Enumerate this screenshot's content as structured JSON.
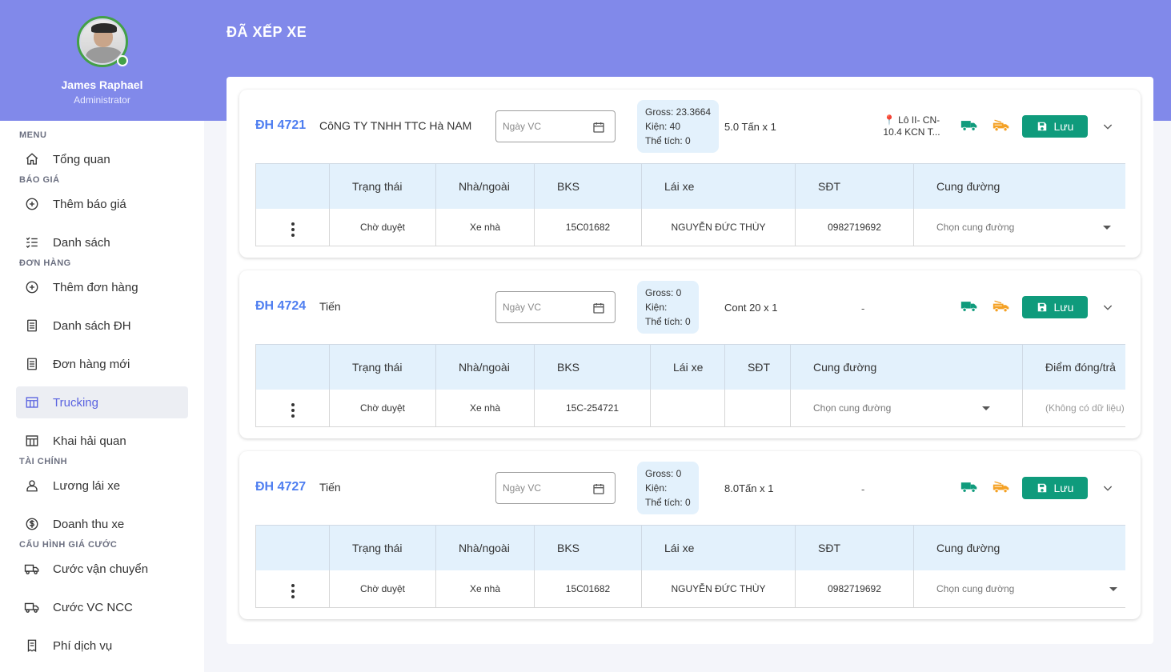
{
  "user": {
    "name": "James Raphael",
    "role": "Administrator"
  },
  "menu": {
    "sections": {
      "menu": "MENU",
      "bao_gia": "BÁO GIÁ",
      "don_hang": "ĐƠN HÀNG",
      "tai_chinh": "TÀI CHÍNH",
      "cau_hinh": "CẤU HÌNH GIÁ CƯỚC"
    },
    "items": {
      "tong_quan": "Tổng quan",
      "them_bao_gia": "Thêm báo giá",
      "danh_sach": "Danh sách",
      "them_don_hang": "Thêm đơn hàng",
      "danh_sach_dh": "Danh sách ĐH",
      "don_hang_moi": "Đơn hàng mới",
      "trucking": "Trucking",
      "khai_hai_quan": "Khai hải quan",
      "luong_lai_xe": "Lương lái xe",
      "doanh_thu_xe": "Doanh thu xe",
      "cuoc_van_chuyen": "Cước vận chuyển",
      "cuoc_vc_ncc": "Cước VC NCC",
      "phi_dich_vu": "Phí dịch vụ"
    },
    "active": "trucking"
  },
  "page": {
    "title": "ĐÃ XẾP XE"
  },
  "common": {
    "date_placeholder": "Ngày VC",
    "save_label": "Lưu",
    "select_route_placeholder": "Chọn cung đường",
    "no_data": "(Không có dữ liệu)"
  },
  "colors": {
    "banner": "#8189ea",
    "accent": "#0f9b7c",
    "link": "#4e7ef0",
    "stats_bg": "#e3f1fc"
  },
  "orders": [
    {
      "id": "ĐH 4721",
      "company": "CôNG TY TNHH TTC Hà NAM",
      "gross": "Gross: 23.3664",
      "kien": "Kiện: 40",
      "the_tich": "Thể tích: 0",
      "capacity": "5.0 Tấn x 1",
      "location_line1": "📍 Lô II- CN-",
      "location_line2": "10.4 KCN T...",
      "columns": [
        "Trạng thái",
        "Nhà/ngoài",
        "BKS",
        "Lái xe",
        "SĐT",
        "Cung đường"
      ],
      "row": {
        "trang_thai": "Chờ duyệt",
        "nha_ngoai": "Xe nhà",
        "bks": "15C01682",
        "lai_xe": "NGUYỄN ĐỨC THÙY",
        "sdt": "0982719692"
      }
    },
    {
      "id": "ĐH 4724",
      "company": "Tiến",
      "gross": "Gross: 0",
      "kien": "Kiện:",
      "the_tich": "Thể tích: 0",
      "capacity": "Cont 20 x 1",
      "location": "-",
      "columns": [
        "Trạng thái",
        "Nhà/ngoài",
        "BKS",
        "Lái xe",
        "SĐT",
        "Cung đường",
        "Điểm đóng/trả"
      ],
      "row": {
        "trang_thai": "Chờ duyệt",
        "nha_ngoai": "Xe nhà",
        "bks": "15C-254721",
        "lai_xe": "",
        "sdt": ""
      }
    },
    {
      "id": "ĐH 4727",
      "company": "Tiến",
      "gross": "Gross: 0",
      "kien": "Kiện:",
      "the_tich": "Thể tích: 0",
      "capacity": "8.0Tấn x 1",
      "location": "-",
      "columns": [
        "Trạng thái",
        "Nhà/ngoài",
        "BKS",
        "Lái xe",
        "SĐT",
        "Cung đường"
      ],
      "row": {
        "trang_thai": "Chờ duyệt",
        "nha_ngoai": "Xe nhà",
        "bks": "15C01682",
        "lai_xe": "NGUYỄN ĐỨC THÙY",
        "sdt": "0982719692"
      }
    }
  ]
}
